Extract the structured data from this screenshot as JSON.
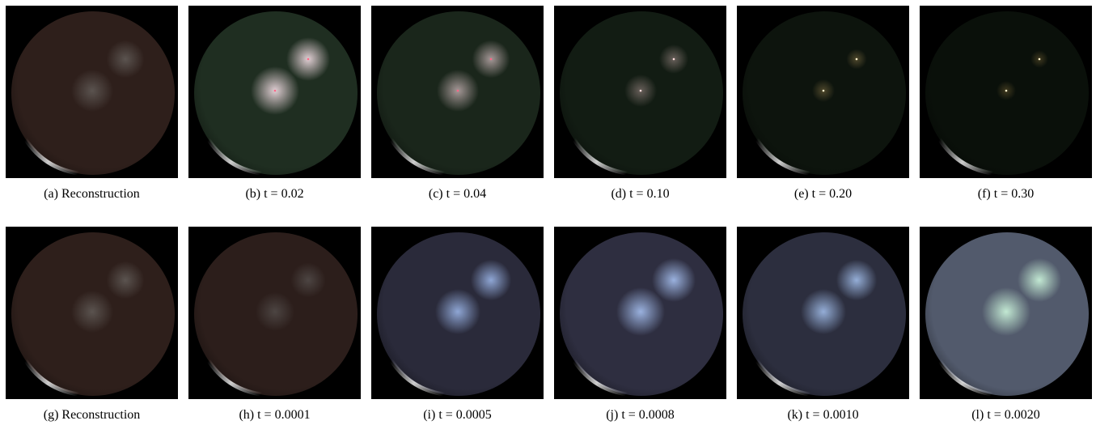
{
  "figure": {
    "panels": [
      {
        "tag": "(a)",
        "caption": "Reconstruction"
      },
      {
        "tag": "(b)",
        "caption": "t = 0.02"
      },
      {
        "tag": "(c)",
        "caption": "t = 0.04"
      },
      {
        "tag": "(d)",
        "caption": "t = 0.10"
      },
      {
        "tag": "(e)",
        "caption": "t = 0.20"
      },
      {
        "tag": "(f)",
        "caption": "t = 0.30"
      },
      {
        "tag": "(g)",
        "caption": "Reconstruction"
      },
      {
        "tag": "(h)",
        "caption": "t = 0.0001"
      },
      {
        "tag": "(i)",
        "caption": "t = 0.0005"
      },
      {
        "tag": "(j)",
        "caption": "t = 0.0008"
      },
      {
        "tag": "(k)",
        "caption": "t = 0.0010"
      },
      {
        "tag": "(l)",
        "caption": "t = 0.0020"
      }
    ]
  }
}
